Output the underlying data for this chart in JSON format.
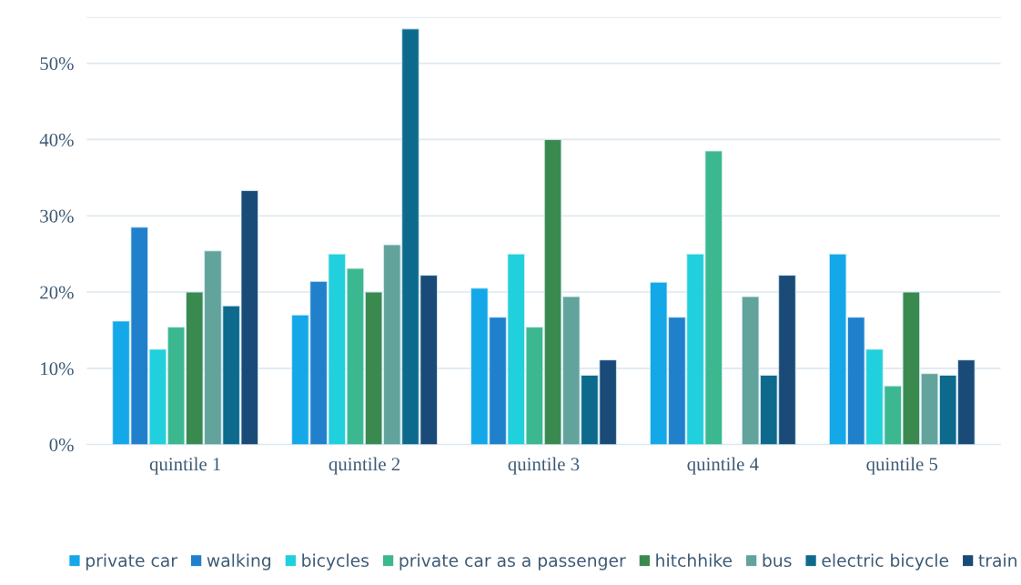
{
  "chart_data": {
    "type": "bar",
    "categories": [
      "quintile 1",
      "quintile 2",
      "quintile 3",
      "quintile 4",
      "quintile 5"
    ],
    "series": [
      {
        "name": "private car",
        "color": "#14a8e8",
        "values": [
          16.2,
          17.0,
          20.5,
          21.3,
          25.0
        ]
      },
      {
        "name": "walking",
        "color": "#2080cc",
        "values": [
          28.5,
          21.4,
          16.7,
          16.7,
          16.7
        ]
      },
      {
        "name": "bicycles",
        "color": "#20d0dc",
        "values": [
          12.5,
          25.0,
          25.0,
          25.0,
          12.5
        ]
      },
      {
        "name": "private car as a passenger",
        "color": "#3cb890",
        "values": [
          15.4,
          23.1,
          15.4,
          38.5,
          7.7
        ]
      },
      {
        "name": "hitchhike",
        "color": "#3a8a50",
        "values": [
          20.0,
          20.0,
          40.0,
          null,
          20.0
        ]
      },
      {
        "name": "bus",
        "color": "#62a39c",
        "values": [
          25.4,
          26.2,
          19.4,
          19.4,
          9.3
        ]
      },
      {
        "name": "electric bicycle",
        "color": "#0e6a8c",
        "values": [
          18.2,
          54.5,
          9.1,
          9.1,
          9.1
        ]
      },
      {
        "name": "train",
        "color": "#1a4a78",
        "values": [
          33.3,
          22.2,
          11.1,
          22.2,
          11.1
        ]
      }
    ],
    "ylim": [
      0,
      56
    ],
    "yticks": [
      {
        "value": 0,
        "label": "0%"
      },
      {
        "value": 10,
        "label": "10%"
      },
      {
        "value": 20,
        "label": "20%"
      },
      {
        "value": 30,
        "label": "30%"
      },
      {
        "value": 40,
        "label": "40%"
      },
      {
        "value": 50,
        "label": "50%"
      }
    ],
    "grid": "y",
    "legend": "bottom"
  }
}
